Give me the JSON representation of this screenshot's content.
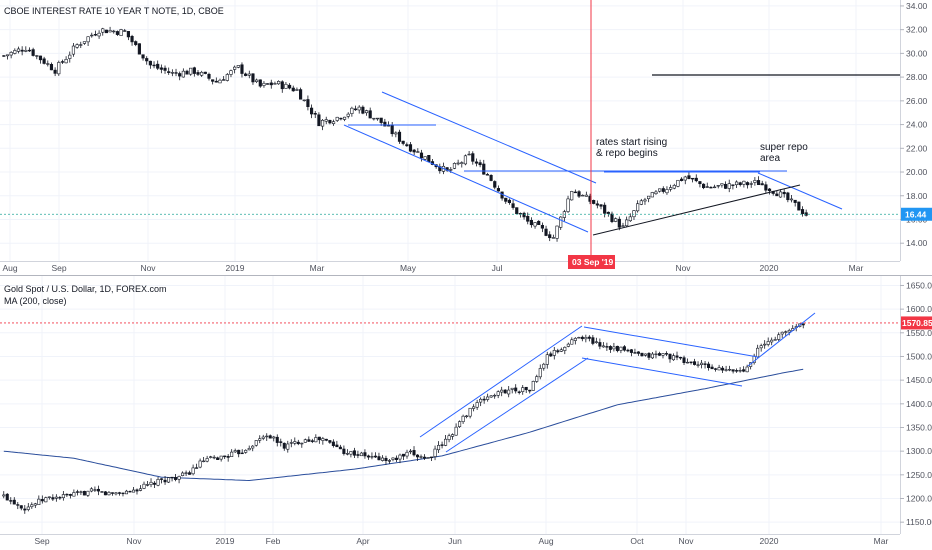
{
  "chart_data": [
    {
      "type": "candlestick",
      "title": "CBOE INTEREST RATE 10 YEAR T NOTE, 1D, CBOE",
      "y_axis_labels": [
        "34.00",
        "32.00",
        "30.00",
        "28.00",
        "26.00",
        "24.00",
        "22.00",
        "20.00",
        "18.00",
        "16.00",
        "14.00"
      ],
      "ylim": [
        12.5,
        34.5
      ],
      "x_axis_labels": [
        "Aug",
        "Sep",
        "Nov",
        "2019",
        "Mar",
        "May",
        "Jul",
        "Nov",
        "2020",
        "Mar"
      ],
      "last_value": "16.44",
      "crosshair_date": "03 Sep '19",
      "annotations": [
        "rates start rising",
        "& repo begins",
        "super repo",
        "area"
      ],
      "key_levels": [
        {
          "value": 28.1
        },
        {
          "value": 19.6
        }
      ],
      "price_path": [
        [
          0,
          29.8
        ],
        [
          6,
          30.5
        ],
        [
          14,
          28.6
        ],
        [
          20,
          30.7
        ],
        [
          26,
          32.0
        ],
        [
          33,
          31.8
        ],
        [
          40,
          29.0
        ],
        [
          46,
          28.3
        ],
        [
          52,
          28.5
        ],
        [
          58,
          27.6
        ],
        [
          64,
          28.8
        ],
        [
          70,
          27.2
        ],
        [
          74,
          27.5
        ],
        [
          80,
          26.9
        ],
        [
          86,
          24.2
        ],
        [
          91,
          24.6
        ],
        [
          97,
          25.4
        ],
        [
          103,
          24.2
        ],
        [
          109,
          22.5
        ],
        [
          115,
          21.2
        ],
        [
          121,
          20.0
        ],
        [
          127,
          21.3
        ],
        [
          132,
          19.8
        ],
        [
          138,
          17.2
        ],
        [
          143,
          15.8
        ],
        [
          148,
          14.9
        ],
        [
          150,
          14.5
        ],
        [
          155,
          18.5
        ],
        [
          162,
          17.2
        ],
        [
          169,
          15.3
        ],
        [
          174,
          17.5
        ],
        [
          179,
          18.3
        ],
        [
          186,
          19.6
        ],
        [
          192,
          18.7
        ],
        [
          199,
          18.9
        ],
        [
          206,
          19.1
        ],
        [
          211,
          18.3
        ],
        [
          216,
          17.2
        ],
        [
          219,
          16.44
        ]
      ],
      "total_bars": 220
    },
    {
      "type": "candlestick",
      "title": "Gold Spot / U.S. Dollar, 1D, FOREX.com",
      "indicator": "MA (200, close)",
      "y_axis_labels": [
        "1650.00",
        "1600.00",
        "1550.00",
        "1500.00",
        "1450.00",
        "1400.00",
        "1350.00",
        "1300.00",
        "1250.00",
        "1200.00",
        "1150.00"
      ],
      "ylim": [
        1125,
        1670
      ],
      "x_axis_labels": [
        "Sep",
        "Nov",
        "2019",
        "Feb",
        "Apr",
        "Jun",
        "Aug",
        "Oct",
        "Nov",
        "2020",
        "Mar"
      ],
      "last_value": "1570.85",
      "price_path": [
        [
          0,
          1205
        ],
        [
          6,
          1180
        ],
        [
          12,
          1200
        ],
        [
          18,
          1205
        ],
        [
          25,
          1215
        ],
        [
          30,
          1210
        ],
        [
          36,
          1215
        ],
        [
          42,
          1230
        ],
        [
          46,
          1240
        ],
        [
          52,
          1250
        ],
        [
          57,
          1280
        ],
        [
          62,
          1287
        ],
        [
          68,
          1300
        ],
        [
          75,
          1335
        ],
        [
          80,
          1310
        ],
        [
          86,
          1325
        ],
        [
          91,
          1325
        ],
        [
          97,
          1300
        ],
        [
          103,
          1290
        ],
        [
          110,
          1280
        ],
        [
          116,
          1295
        ],
        [
          121,
          1285
        ],
        [
          127,
          1330
        ],
        [
          133,
          1390
        ],
        [
          138,
          1415
        ],
        [
          144,
          1430
        ],
        [
          150,
          1430
        ],
        [
          155,
          1500
        ],
        [
          160,
          1520
        ],
        [
          164,
          1545
        ],
        [
          170,
          1525
        ],
        [
          176,
          1515
        ],
        [
          182,
          1500
        ],
        [
          188,
          1505
        ],
        [
          194,
          1490
        ],
        [
          200,
          1480
        ],
        [
          205,
          1470
        ],
        [
          211,
          1470
        ],
        [
          215,
          1515
        ],
        [
          220,
          1540
        ],
        [
          225,
          1560
        ],
        [
          228,
          1572
        ]
      ],
      "ma_path": [
        [
          0,
          1300
        ],
        [
          20,
          1285
        ],
        [
          45,
          1245
        ],
        [
          70,
          1238
        ],
        [
          100,
          1262
        ],
        [
          125,
          1290
        ],
        [
          150,
          1340
        ],
        [
          175,
          1398
        ],
        [
          200,
          1432
        ],
        [
          212,
          1450
        ],
        [
          222,
          1465
        ],
        [
          228,
          1473
        ]
      ],
      "total_bars": 229
    }
  ],
  "colors": {
    "up": "#26a69a",
    "down": "#ef5350",
    "candle": "#131722",
    "trend": "#2962ff",
    "crosshair": "#f23645",
    "black_line": "#131722",
    "rate_tag": "#2196f3",
    "gold_tag": "#f23645",
    "grid": "#f0f3fa",
    "axis_text": "#50535e"
  }
}
